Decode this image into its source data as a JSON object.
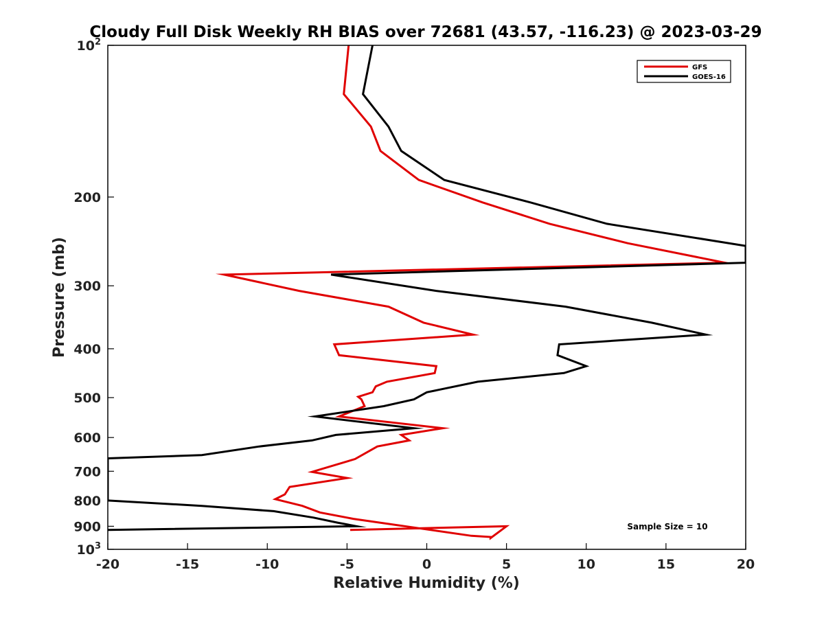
{
  "chart_data": {
    "type": "line",
    "title": "Cloudy Full Disk Weekly RH BIAS over 72681 (43.57, -116.23) @ 2023-03-29",
    "xlabel": "Relative Humidity (%)",
    "ylabel": "Pressure (mb)",
    "xlim": [
      -20,
      20
    ],
    "ylim": [
      1000,
      100
    ],
    "yscale": "log",
    "y_reversed": true,
    "grid": false,
    "legend_position": "top-right",
    "x_ticks": [
      {
        "value": -20,
        "label": "-20"
      },
      {
        "value": -15,
        "label": "-15"
      },
      {
        "value": -10,
        "label": "-10"
      },
      {
        "value": -5,
        "label": "-5"
      },
      {
        "value": 0,
        "label": "0"
      },
      {
        "value": 5,
        "label": "5"
      },
      {
        "value": 10,
        "label": "10"
      },
      {
        "value": 15,
        "label": "15"
      },
      {
        "value": 20,
        "label": "20"
      }
    ],
    "y_ticks": [
      {
        "value": 100,
        "base": "10",
        "sup": "2"
      },
      {
        "value": 200,
        "base": "200",
        "sup": ""
      },
      {
        "value": 300,
        "base": "300",
        "sup": ""
      },
      {
        "value": 400,
        "base": "400",
        "sup": ""
      },
      {
        "value": 500,
        "base": "500",
        "sup": ""
      },
      {
        "value": 600,
        "base": "600",
        "sup": ""
      },
      {
        "value": 700,
        "base": "700",
        "sup": ""
      },
      {
        "value": 800,
        "base": "800",
        "sup": ""
      },
      {
        "value": 900,
        "base": "900",
        "sup": ""
      },
      {
        "value": 1000,
        "base": "10",
        "sup": "3"
      }
    ],
    "series": [
      {
        "name": "GFS",
        "color": "#e00000",
        "points": [
          {
            "x": -4.9,
            "y": 100
          },
          {
            "x": -5.2,
            "y": 125
          },
          {
            "x": -3.5,
            "y": 145
          },
          {
            "x": -2.9,
            "y": 162
          },
          {
            "x": -0.5,
            "y": 185
          },
          {
            "x": 3.5,
            "y": 205
          },
          {
            "x": 7.7,
            "y": 226
          },
          {
            "x": 12.6,
            "y": 247
          },
          {
            "x": 18.7,
            "y": 270
          },
          {
            "x": -12.7,
            "y": 285
          },
          {
            "x": -8.0,
            "y": 307
          },
          {
            "x": -2.4,
            "y": 330
          },
          {
            "x": -0.2,
            "y": 355
          },
          {
            "x": 2.9,
            "y": 375
          },
          {
            "x": -5.8,
            "y": 392
          },
          {
            "x": -5.5,
            "y": 412
          },
          {
            "x": 0.6,
            "y": 433
          },
          {
            "x": 0.5,
            "y": 447
          },
          {
            "x": -2.5,
            "y": 465
          },
          {
            "x": -3.2,
            "y": 475
          },
          {
            "x": -3.4,
            "y": 488
          },
          {
            "x": -4.3,
            "y": 498
          },
          {
            "x": -4.1,
            "y": 504
          },
          {
            "x": -3.9,
            "y": 520
          },
          {
            "x": -5.5,
            "y": 545
          },
          {
            "x": 1.0,
            "y": 575
          },
          {
            "x": -1.6,
            "y": 593
          },
          {
            "x": -1.1,
            "y": 608
          },
          {
            "x": -3.1,
            "y": 625
          },
          {
            "x": -4.5,
            "y": 662
          },
          {
            "x": -7.2,
            "y": 702
          },
          {
            "x": -5.0,
            "y": 722
          },
          {
            "x": -8.6,
            "y": 752
          },
          {
            "x": -8.9,
            "y": 778
          },
          {
            "x": -9.5,
            "y": 795
          },
          {
            "x": -7.8,
            "y": 820
          },
          {
            "x": -6.7,
            "y": 845
          },
          {
            "x": -4.6,
            "y": 870
          },
          {
            "x": 2.8,
            "y": 940
          },
          {
            "x": 4.0,
            "y": 945
          },
          {
            "x": 4.0,
            "y": 950
          },
          {
            "x": 5.0,
            "y": 900
          },
          {
            "x": -4.8,
            "y": 915
          }
        ]
      },
      {
        "name": "GOES-16",
        "color": "#000000",
        "points": [
          {
            "x": -3.4,
            "y": 100
          },
          {
            "x": -4.0,
            "y": 125
          },
          {
            "x": -2.4,
            "y": 145
          },
          {
            "x": -1.6,
            "y": 162
          },
          {
            "x": 1.1,
            "y": 185
          },
          {
            "x": 6.5,
            "y": 205
          },
          {
            "x": 11.3,
            "y": 226
          },
          {
            "x": 20.0,
            "y": 250
          },
          {
            "x": 20.0,
            "y": 270
          },
          {
            "x": -6.0,
            "y": 285
          },
          {
            "x": 0.6,
            "y": 307
          },
          {
            "x": 8.7,
            "y": 330
          },
          {
            "x": 14.1,
            "y": 355
          },
          {
            "x": 17.5,
            "y": 375
          },
          {
            "x": 8.3,
            "y": 392
          },
          {
            "x": 8.2,
            "y": 412
          },
          {
            "x": 10.0,
            "y": 433
          },
          {
            "x": 8.6,
            "y": 447
          },
          {
            "x": 3.2,
            "y": 465
          },
          {
            "x": 0.0,
            "y": 488
          },
          {
            "x": -0.8,
            "y": 504
          },
          {
            "x": -2.7,
            "y": 520
          },
          {
            "x": -7.0,
            "y": 545
          },
          {
            "x": -0.8,
            "y": 575
          },
          {
            "x": -5.7,
            "y": 593
          },
          {
            "x": -7.2,
            "y": 608
          },
          {
            "x": -10.5,
            "y": 625
          },
          {
            "x": -14.1,
            "y": 650
          },
          {
            "x": -20.0,
            "y": 660
          },
          {
            "x": -20.0,
            "y": 800
          },
          {
            "x": -14.1,
            "y": 820
          },
          {
            "x": -9.6,
            "y": 840
          },
          {
            "x": -7.1,
            "y": 865
          },
          {
            "x": -5.6,
            "y": 885
          },
          {
            "x": -4.4,
            "y": 900
          },
          {
            "x": -20.0,
            "y": 915
          }
        ]
      }
    ],
    "annotation": "Sample Size = 10"
  }
}
